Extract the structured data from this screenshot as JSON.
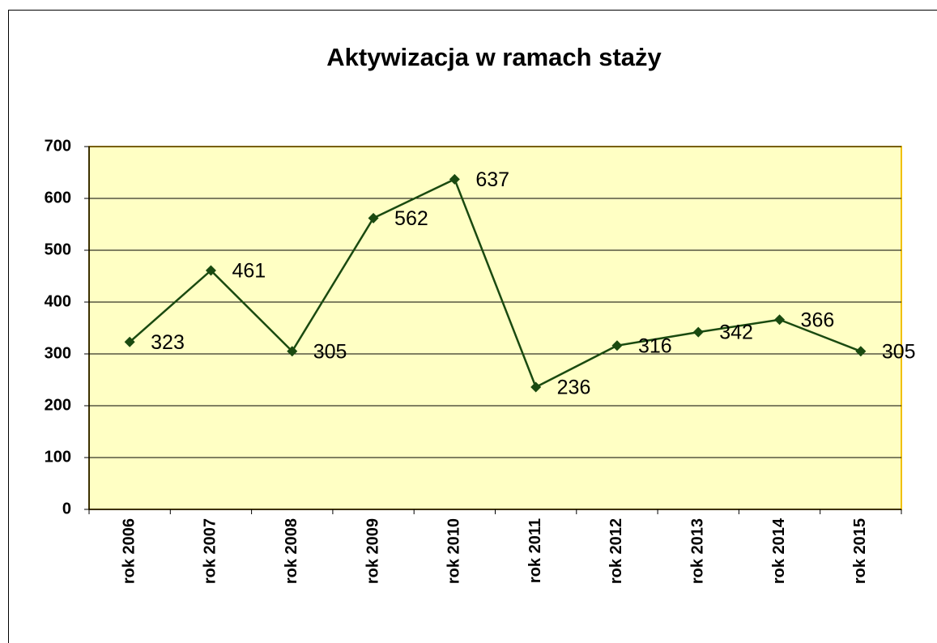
{
  "chart_data": {
    "type": "line",
    "title": "Aktywizacja w ramach staży",
    "categories": [
      "rok 2006",
      "rok 2007",
      "rok 2008",
      "rok 2009",
      "rok 2010",
      "rok 2011",
      "rok 2012",
      "rok 2013",
      "rok 2014",
      "rok 2015"
    ],
    "values": [
      323,
      461,
      305,
      562,
      637,
      236,
      316,
      342,
      366,
      305
    ],
    "color": "#1a4a10",
    "ylim": [
      0,
      700
    ],
    "yticks": [
      0,
      100,
      200,
      300,
      400,
      500,
      600,
      700
    ],
    "grid": true
  }
}
